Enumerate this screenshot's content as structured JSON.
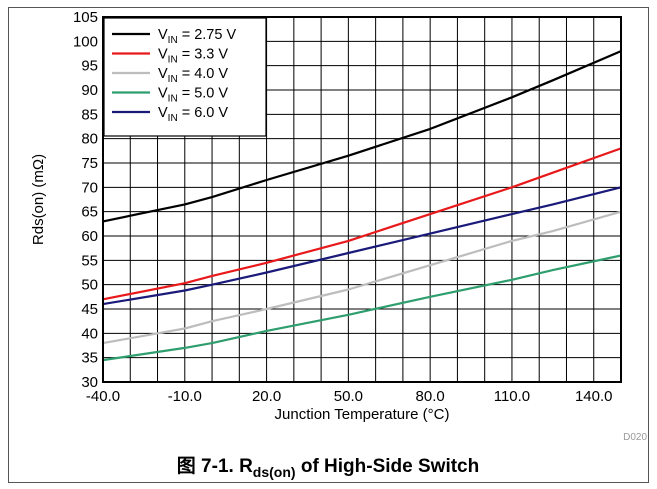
{
  "chart_data": {
    "type": "line",
    "xlabel": "Junction Temperature (°C)",
    "ylabel": "Rds(on) (mΩ)",
    "xlim": [
      -40,
      150
    ],
    "ylim": [
      30,
      105
    ],
    "x_ticks": [
      "-40.0",
      "-10.0",
      "20.0",
      "50.0",
      "80.0",
      "110.0",
      "140.0"
    ],
    "y_ticks": [
      30,
      35,
      40,
      45,
      50,
      55,
      60,
      65,
      70,
      75,
      80,
      85,
      90,
      95,
      100,
      105
    ],
    "grid": true,
    "legend_position": "top-left",
    "series": [
      {
        "name_main": "V",
        "name_sub": "IN",
        "name_rest": " = 2.75 V",
        "color": "#000000",
        "x": [
          -40,
          -10,
          0,
          20,
          50,
          80,
          110,
          125,
          150
        ],
        "y": [
          63,
          66.5,
          68,
          71.5,
          76.5,
          82,
          88.5,
          92,
          98
        ]
      },
      {
        "name_main": "V",
        "name_sub": "IN",
        "name_rest": " = 3.3 V",
        "color": "#e8191b",
        "x": [
          -40,
          -10,
          0,
          20,
          50,
          80,
          110,
          125,
          150
        ],
        "y": [
          47,
          50.3,
          51.8,
          54.5,
          59,
          64.5,
          70,
          73,
          78
        ]
      },
      {
        "name_main": "V",
        "name_sub": "IN",
        "name_rest": " = 4.0 V",
        "color": "#bdbdbd",
        "x": [
          -40,
          -10,
          0,
          20,
          50,
          80,
          110,
          125,
          150
        ],
        "y": [
          38,
          41,
          42.5,
          45,
          49,
          54,
          59,
          61,
          65
        ]
      },
      {
        "name_main": "V",
        "name_sub": "IN",
        "name_rest": " = 5.0 V",
        "color": "#2e9e6e",
        "x": [
          -40,
          -10,
          0,
          20,
          50,
          80,
          110,
          125,
          150
        ],
        "y": [
          34.5,
          37,
          38,
          40.5,
          43.8,
          47.5,
          51,
          53,
          56
        ]
      },
      {
        "name_main": "V",
        "name_sub": "IN",
        "name_rest": " = 6.0 V",
        "color": "#1a1a7a",
        "x": [
          -40,
          -10,
          0,
          20,
          50,
          80,
          110,
          125,
          150
        ],
        "y": [
          46,
          48.8,
          50,
          52.5,
          56.5,
          60.5,
          64.5,
          66.5,
          70
        ]
      }
    ]
  },
  "figure_code": "D020",
  "caption": {
    "prefix": "图 7-1. R",
    "sub": "ds(on)",
    "suffix": " of High-Side Switch"
  }
}
